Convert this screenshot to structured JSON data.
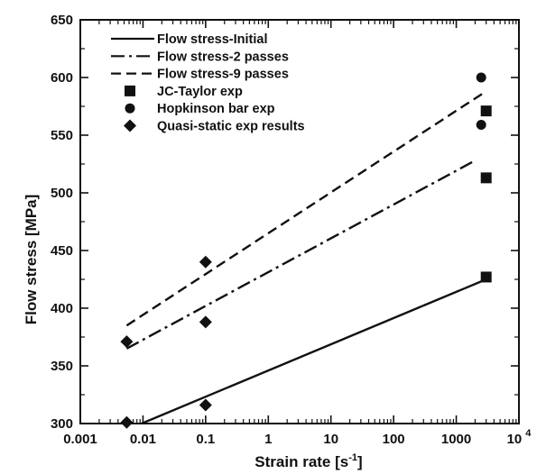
{
  "chart_data": {
    "type": "scatter",
    "xlabel": "Strain rate [s",
    "xlabel_sup": "-1",
    "xlabel_end": "]",
    "ylabel": "Flow stress [MPa]",
    "xscale": "log",
    "xlim": [
      0.001,
      10000
    ],
    "ylim": [
      300,
      650
    ],
    "grid": false,
    "legend_placement": "top-left",
    "x_ticks": [
      {
        "value": 0.001,
        "label": "0.001"
      },
      {
        "value": 0.01,
        "label": "0.01"
      },
      {
        "value": 0.1,
        "label": "0.1"
      },
      {
        "value": 1,
        "label": "1"
      },
      {
        "value": 10,
        "label": "10"
      },
      {
        "value": 100,
        "label": "100"
      },
      {
        "value": 1000,
        "label": "1000"
      },
      {
        "value": 10000,
        "label": "10",
        "sup": "4"
      }
    ],
    "y_ticks": [
      {
        "value": 300,
        "label": "300"
      },
      {
        "value": 350,
        "label": "350"
      },
      {
        "value": 400,
        "label": "400"
      },
      {
        "value": 450,
        "label": "450"
      },
      {
        "value": 500,
        "label": "500"
      },
      {
        "value": 550,
        "label": "550"
      },
      {
        "value": 600,
        "label": "600"
      },
      {
        "value": 650,
        "label": "650"
      }
    ],
    "lines": [
      {
        "name": "Flow stress-Initial",
        "style": "solid",
        "points": [
          [
            0.0095,
            300
          ],
          [
            3000,
            425
          ]
        ]
      },
      {
        "name": "Flow stress-2 passes",
        "style": "dashdot",
        "points": [
          [
            0.0055,
            365
          ],
          [
            2000,
            528
          ]
        ]
      },
      {
        "name": "Flow stress-9 passes",
        "style": "dashed",
        "points": [
          [
            0.0055,
            385
          ],
          [
            2800,
            587
          ]
        ]
      }
    ],
    "markers": [
      {
        "name": "JC-Taylor exp",
        "shape": "square",
        "points": [
          [
            3000,
            571
          ],
          [
            3000,
            513
          ],
          [
            3000,
            427
          ]
        ]
      },
      {
        "name": "Hopkinson bar exp",
        "shape": "circle",
        "points": [
          [
            2500,
            600
          ],
          [
            2500,
            559
          ]
        ]
      },
      {
        "name": "Quasi-static exp results",
        "shape": "diamond",
        "points": [
          [
            0.0055,
            371
          ],
          [
            0.1,
            440
          ],
          [
            0.1,
            388
          ],
          [
            0.0055,
            301
          ],
          [
            0.1,
            316
          ]
        ]
      }
    ]
  }
}
